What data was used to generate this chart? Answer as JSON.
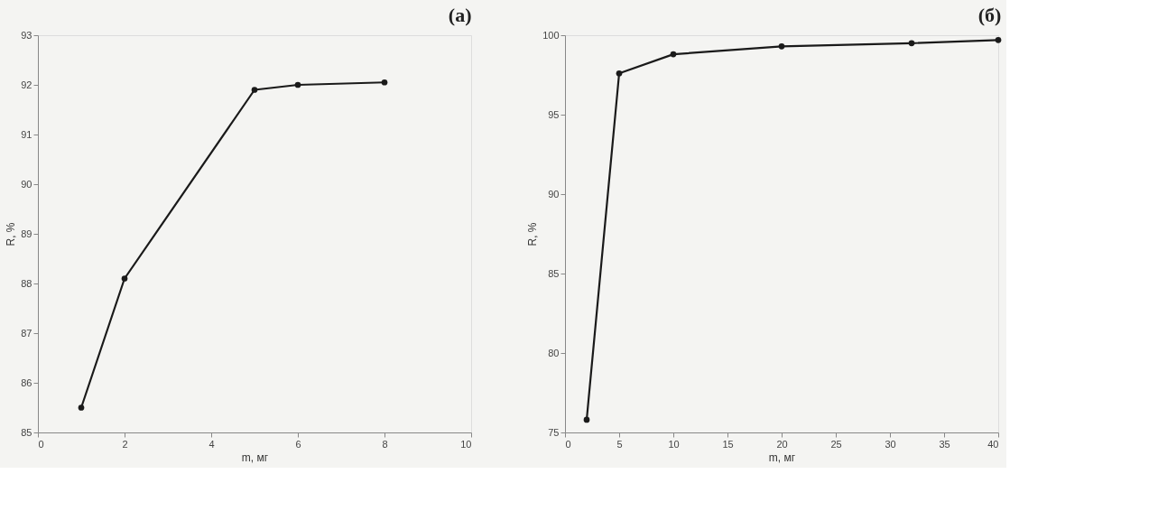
{
  "chart_data": [
    {
      "type": "line",
      "title": "(а)",
      "xlabel": "m, мг",
      "ylabel": "R, %",
      "x": [
        1,
        2,
        5,
        6,
        8
      ],
      "series": [
        {
          "color": "#1a1a1a",
          "values": [
            85.5,
            88.1,
            91.9,
            92.0,
            92.05
          ]
        }
      ],
      "xlim": [
        0,
        10
      ],
      "xticks": [
        0,
        2,
        4,
        6,
        8,
        10
      ],
      "ylim": [
        85,
        93
      ],
      "yticks": [
        85,
        86,
        87,
        88,
        89,
        90,
        91,
        92,
        93
      ],
      "marker": "circle",
      "line_style": "solid",
      "grid": false
    },
    {
      "type": "line",
      "title": "(б)",
      "xlabel": "m, мг",
      "ylabel": "R, %",
      "x": [
        2,
        5,
        10,
        20,
        32,
        40
      ],
      "series": [
        {
          "color": "#1a1a1a",
          "values": [
            75.8,
            97.6,
            98.8,
            99.3,
            99.5,
            99.7
          ]
        }
      ],
      "xlim": [
        0,
        40
      ],
      "xticks": [
        0,
        5,
        10,
        15,
        20,
        25,
        30,
        35,
        40
      ],
      "ylim": [
        75,
        100
      ],
      "yticks": [
        75,
        80,
        85,
        90,
        95,
        100
      ],
      "marker": "circle",
      "line_style": "solid",
      "grid": false
    }
  ]
}
